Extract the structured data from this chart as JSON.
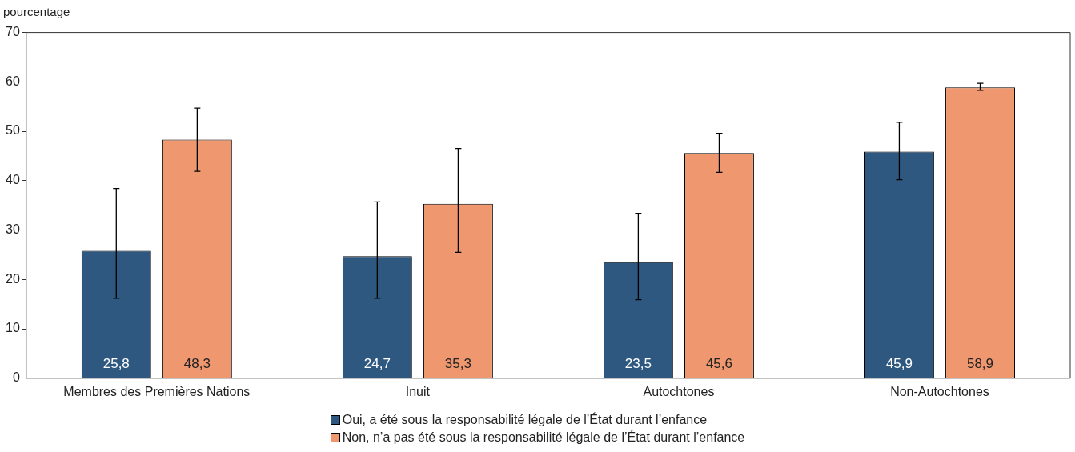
{
  "chart_data": {
    "type": "bar",
    "ylabel": "pourcentage",
    "categories": [
      "Membres des Premières Nations",
      "Inuit",
      "Autochtones",
      "Non-Autochtones"
    ],
    "series": [
      {
        "name": "Oui, a été sous la responsabilité légale de l’État durant l’enfance",
        "color": "#2e5880",
        "values": [
          25.8,
          24.7,
          23.5,
          45.9
        ],
        "value_labels": [
          "25,8",
          "24,7",
          "23,5",
          "45,9"
        ],
        "errors": [
          [
            16.2,
            38.4
          ],
          [
            16.2,
            35.7
          ],
          [
            15.9,
            33.4
          ],
          [
            40.2,
            51.8
          ]
        ]
      },
      {
        "name": "Non, n’a pas été sous la responsabilité légale de l’État durant l’enfance",
        "color": "#ef9870",
        "values": [
          48.3,
          35.3,
          45.6,
          58.9
        ],
        "value_labels": [
          "48,3",
          "35,3",
          "45,6",
          "58,9"
        ],
        "errors": [
          [
            41.9,
            54.7
          ],
          [
            25.5,
            46.5
          ],
          [
            41.7,
            49.6
          ],
          [
            58.3,
            59.7
          ]
        ]
      }
    ],
    "ylim": [
      0,
      70
    ],
    "yticks": [
      0,
      10,
      20,
      30,
      40,
      50,
      60,
      70
    ],
    "grid": false,
    "legend": "bottom"
  }
}
